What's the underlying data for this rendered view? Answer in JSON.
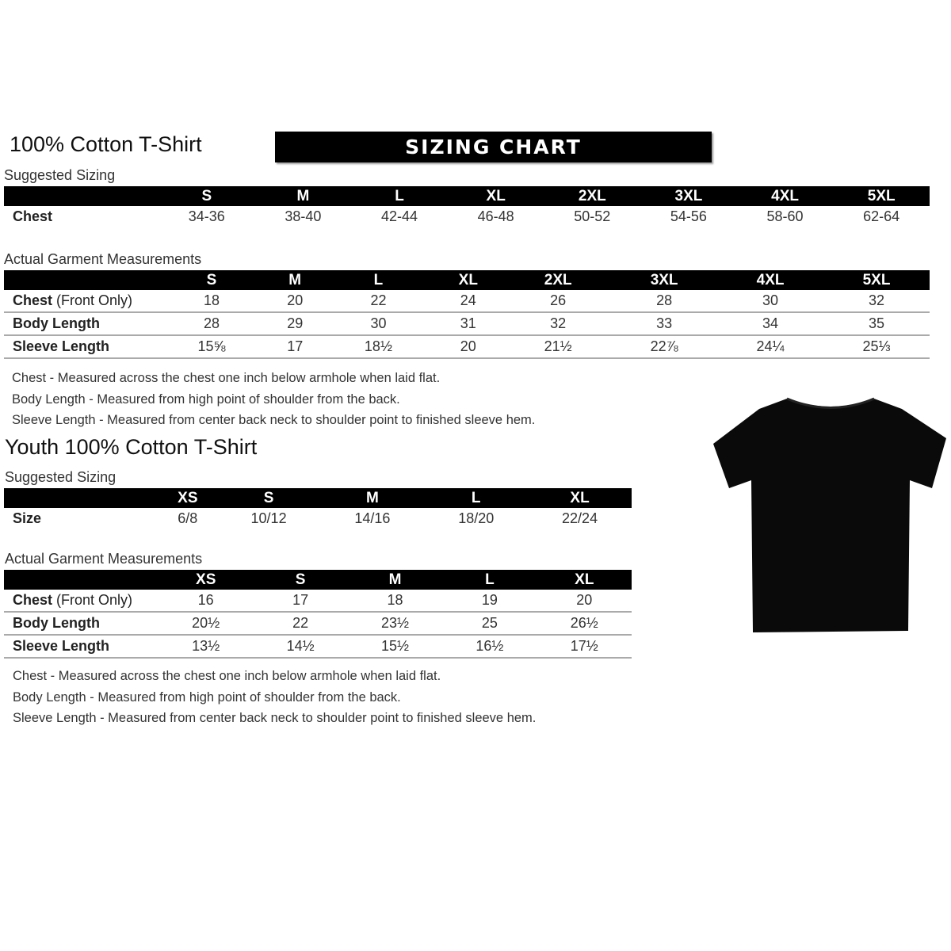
{
  "banner": "SIZING CHART",
  "adult": {
    "title": "100% Cotton T-Shirt",
    "suggested_label": "Suggested Sizing",
    "sizes": [
      "S",
      "M",
      "L",
      "XL",
      "2XL",
      "3XL",
      "4XL",
      "5XL"
    ],
    "suggested_rows": [
      {
        "label": "Chest",
        "values": [
          "34-36",
          "38-40",
          "42-44",
          "46-48",
          "50-52",
          "54-56",
          "58-60",
          "62-64"
        ]
      }
    ],
    "measurements_label": "Actual Garment Measurements",
    "measurement_rows": [
      {
        "label": "Chest",
        "label_note": "(Front Only)",
        "values": [
          "18",
          "20",
          "22",
          "24",
          "26",
          "28",
          "30",
          "32"
        ]
      },
      {
        "label": "Body Length",
        "values": [
          "28",
          "29",
          "30",
          "31",
          "32",
          "33",
          "34",
          "35"
        ]
      },
      {
        "label": "Sleeve Length",
        "values": [
          "15⅝",
          "17",
          "18½",
          "20",
          "21½",
          "22⅞",
          "24¼",
          "25⅓"
        ]
      }
    ],
    "notes": [
      "Chest - Measured across the chest one inch below armhole when laid flat.",
      "Body Length - Measured from high point of shoulder from the back.",
      "Sleeve Length - Measured from center back neck to shoulder point to finished sleeve hem."
    ]
  },
  "youth": {
    "title": "Youth 100% Cotton T-Shirt",
    "suggested_label": "Suggested Sizing",
    "sizes": [
      "XS",
      "S",
      "M",
      "L",
      "XL"
    ],
    "suggested_rows": [
      {
        "label": "Size",
        "values": [
          "6/8",
          "10/12",
          "14/16",
          "18/20",
          "22/24"
        ]
      }
    ],
    "measurements_label": "Actual Garment Measurements",
    "measurement_rows": [
      {
        "label": "Chest",
        "label_note": "(Front Only)",
        "values": [
          "16",
          "17",
          "18",
          "19",
          "20"
        ]
      },
      {
        "label": "Body Length",
        "values": [
          "20½",
          "22",
          "23½",
          "25",
          "26½"
        ]
      },
      {
        "label": "Sleeve Length",
        "values": [
          "13½",
          "14½",
          "15½",
          "16½",
          "17½"
        ]
      }
    ],
    "notes": [
      "Chest - Measured across the chest one inch below armhole when laid flat.",
      "Body Length - Measured from high point of shoulder from the back.",
      "Sleeve Length - Measured from center back neck to shoulder point to finished sleeve hem."
    ]
  },
  "image": {
    "icon": "tshirt-icon",
    "color": "#0a0a0a"
  }
}
